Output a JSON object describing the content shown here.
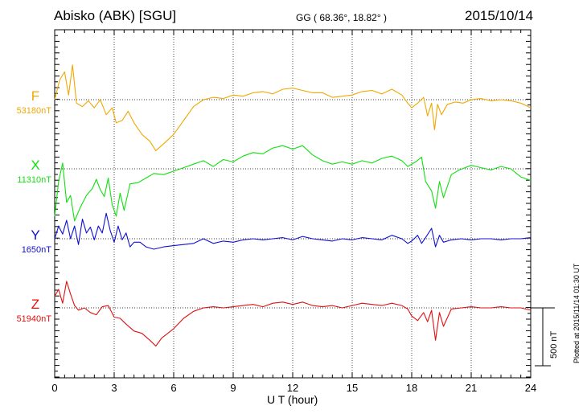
{
  "header": {
    "station": "Abisko (ABK)  [SGU]",
    "coordinates": "GG ( 68.36°,  18.82° )",
    "date": "2015/10/14"
  },
  "footer": {
    "plotted": "Plotted at 2015/11/14 01:30 UT"
  },
  "colors": {
    "F": "#f0a800",
    "X": "#10e010",
    "Y": "#1010d0",
    "Z": "#e01010"
  },
  "chart_data": {
    "type": "line",
    "xlabel": "U T (hour)",
    "xlim": [
      0,
      24
    ],
    "x_ticks": [
      "0",
      "3",
      "6",
      "9",
      "12",
      "15",
      "18",
      "21",
      "24"
    ],
    "scale_bar": {
      "label": "500 nT",
      "value_nT": 500
    },
    "series": [
      {
        "name": "F",
        "baseline_label": "53180nT",
        "baseline_nT": 53180,
        "points": [
          [
            0,
            53180
          ],
          [
            0.25,
            53350
          ],
          [
            0.5,
            53420
          ],
          [
            0.7,
            53220
          ],
          [
            0.9,
            53480
          ],
          [
            1.1,
            53150
          ],
          [
            1.4,
            53120
          ],
          [
            1.7,
            53170
          ],
          [
            2.0,
            53110
          ],
          [
            2.3,
            53180
          ],
          [
            2.6,
            53050
          ],
          [
            2.9,
            53110
          ],
          [
            3.1,
            52980
          ],
          [
            3.4,
            53000
          ],
          [
            3.7,
            53080
          ],
          [
            4.0,
            52980
          ],
          [
            4.4,
            52880
          ],
          [
            4.8,
            52820
          ],
          [
            5.1,
            52740
          ],
          [
            5.5,
            52800
          ],
          [
            6.0,
            52880
          ],
          [
            6.5,
            53000
          ],
          [
            7.0,
            53120
          ],
          [
            7.5,
            53180
          ],
          [
            8.0,
            53200
          ],
          [
            8.5,
            53190
          ],
          [
            9.0,
            53220
          ],
          [
            9.5,
            53210
          ],
          [
            10.0,
            53240
          ],
          [
            10.5,
            53250
          ],
          [
            11.0,
            53230
          ],
          [
            11.5,
            53270
          ],
          [
            12.0,
            53280
          ],
          [
            12.5,
            53260
          ],
          [
            13.0,
            53240
          ],
          [
            13.5,
            53240
          ],
          [
            14.0,
            53200
          ],
          [
            14.5,
            53210
          ],
          [
            15.0,
            53220
          ],
          [
            15.5,
            53250
          ],
          [
            16.0,
            53260
          ],
          [
            16.5,
            53230
          ],
          [
            17.0,
            53270
          ],
          [
            17.5,
            53220
          ],
          [
            17.8,
            53150
          ],
          [
            18.0,
            53110
          ],
          [
            18.3,
            53150
          ],
          [
            18.6,
            53200
          ],
          [
            18.8,
            53040
          ],
          [
            19.0,
            53150
          ],
          [
            19.15,
            52920
          ],
          [
            19.3,
            53140
          ],
          [
            19.5,
            53050
          ],
          [
            19.8,
            53140
          ],
          [
            20.2,
            53160
          ],
          [
            20.6,
            53150
          ],
          [
            21.0,
            53180
          ],
          [
            21.5,
            53190
          ],
          [
            22.0,
            53170
          ],
          [
            22.5,
            53180
          ],
          [
            23.0,
            53170
          ],
          [
            23.5,
            53150
          ],
          [
            24.0,
            53110
          ]
        ]
      },
      {
        "name": "X",
        "baseline_label": "11310nT",
        "baseline_nT": 11310,
        "points": [
          [
            0,
            10900
          ],
          [
            0.2,
            11200
          ],
          [
            0.4,
            11360
          ],
          [
            0.6,
            11020
          ],
          [
            0.8,
            11080
          ],
          [
            1.0,
            10860
          ],
          [
            1.3,
            10980
          ],
          [
            1.6,
            11080
          ],
          [
            1.9,
            11140
          ],
          [
            2.1,
            11220
          ],
          [
            2.3,
            11130
          ],
          [
            2.5,
            11070
          ],
          [
            2.7,
            11230
          ],
          [
            2.9,
            11000
          ],
          [
            3.1,
            10900
          ],
          [
            3.3,
            11100
          ],
          [
            3.5,
            10950
          ],
          [
            3.8,
            11180
          ],
          [
            4.2,
            11190
          ],
          [
            4.6,
            11230
          ],
          [
            5.0,
            11270
          ],
          [
            5.5,
            11260
          ],
          [
            6.0,
            11290
          ],
          [
            6.5,
            11320
          ],
          [
            7.0,
            11350
          ],
          [
            7.5,
            11380
          ],
          [
            8.0,
            11330
          ],
          [
            8.5,
            11390
          ],
          [
            9.0,
            11370
          ],
          [
            9.5,
            11420
          ],
          [
            10.0,
            11450
          ],
          [
            10.5,
            11440
          ],
          [
            11.0,
            11490
          ],
          [
            11.5,
            11510
          ],
          [
            12.0,
            11480
          ],
          [
            12.5,
            11510
          ],
          [
            13.0,
            11430
          ],
          [
            13.5,
            11380
          ],
          [
            14.0,
            11350
          ],
          [
            14.5,
            11370
          ],
          [
            15.0,
            11350
          ],
          [
            15.5,
            11380
          ],
          [
            16.0,
            11360
          ],
          [
            16.5,
            11400
          ],
          [
            17.0,
            11420
          ],
          [
            17.5,
            11380
          ],
          [
            17.8,
            11330
          ],
          [
            18.2,
            11370
          ],
          [
            18.5,
            11410
          ],
          [
            18.7,
            11200
          ],
          [
            19.0,
            11120
          ],
          [
            19.2,
            10970
          ],
          [
            19.4,
            11200
          ],
          [
            19.6,
            11060
          ],
          [
            20.0,
            11260
          ],
          [
            20.4,
            11300
          ],
          [
            21.0,
            11340
          ],
          [
            21.5,
            11320
          ],
          [
            22.0,
            11300
          ],
          [
            22.5,
            11330
          ],
          [
            23.0,
            11310
          ],
          [
            23.5,
            11240
          ],
          [
            24.0,
            11210
          ]
        ]
      },
      {
        "name": "Y",
        "baseline_label": "1650nT",
        "baseline_nT": 1650,
        "points": [
          [
            0,
            1650
          ],
          [
            0.2,
            1760
          ],
          [
            0.4,
            1690
          ],
          [
            0.6,
            1810
          ],
          [
            0.8,
            1650
          ],
          [
            1.0,
            1760
          ],
          [
            1.2,
            1600
          ],
          [
            1.4,
            1820
          ],
          [
            1.6,
            1700
          ],
          [
            1.8,
            1750
          ],
          [
            2.0,
            1640
          ],
          [
            2.2,
            1760
          ],
          [
            2.4,
            1700
          ],
          [
            2.6,
            1870
          ],
          [
            2.8,
            1720
          ],
          [
            3.0,
            1620
          ],
          [
            3.2,
            1760
          ],
          [
            3.4,
            1640
          ],
          [
            3.6,
            1700
          ],
          [
            3.8,
            1580
          ],
          [
            4.0,
            1620
          ],
          [
            4.3,
            1620
          ],
          [
            4.6,
            1580
          ],
          [
            5.0,
            1560
          ],
          [
            5.5,
            1580
          ],
          [
            6.0,
            1590
          ],
          [
            6.5,
            1600
          ],
          [
            7.0,
            1610
          ],
          [
            7.5,
            1650
          ],
          [
            8.0,
            1610
          ],
          [
            8.5,
            1630
          ],
          [
            9.0,
            1620
          ],
          [
            9.5,
            1640
          ],
          [
            10.0,
            1650
          ],
          [
            10.5,
            1640
          ],
          [
            11.0,
            1650
          ],
          [
            11.5,
            1660
          ],
          [
            12.0,
            1640
          ],
          [
            12.5,
            1670
          ],
          [
            13.0,
            1650
          ],
          [
            13.5,
            1640
          ],
          [
            14.0,
            1630
          ],
          [
            14.5,
            1650
          ],
          [
            15.0,
            1640
          ],
          [
            15.5,
            1660
          ],
          [
            16.0,
            1650
          ],
          [
            16.5,
            1640
          ],
          [
            17.0,
            1680
          ],
          [
            17.5,
            1650
          ],
          [
            17.8,
            1610
          ],
          [
            18.0,
            1630
          ],
          [
            18.3,
            1680
          ],
          [
            18.5,
            1610
          ],
          [
            18.7,
            1660
          ],
          [
            19.0,
            1740
          ],
          [
            19.2,
            1580
          ],
          [
            19.4,
            1680
          ],
          [
            19.6,
            1620
          ],
          [
            20.0,
            1640
          ],
          [
            20.5,
            1650
          ],
          [
            21.0,
            1640
          ],
          [
            21.5,
            1650
          ],
          [
            22.0,
            1650
          ],
          [
            22.5,
            1640
          ],
          [
            23.0,
            1650
          ],
          [
            23.5,
            1650
          ],
          [
            24.0,
            1660
          ]
        ]
      },
      {
        "name": "Z",
        "baseline_label": "51940nT",
        "baseline_nT": 51940,
        "points": [
          [
            0,
            52040
          ],
          [
            0.2,
            52100
          ],
          [
            0.4,
            51980
          ],
          [
            0.6,
            52170
          ],
          [
            0.8,
            52060
          ],
          [
            1.0,
            51960
          ],
          [
            1.2,
            51920
          ],
          [
            1.5,
            51940
          ],
          [
            1.8,
            51900
          ],
          [
            2.1,
            51880
          ],
          [
            2.4,
            51950
          ],
          [
            2.7,
            51960
          ],
          [
            3.0,
            51860
          ],
          [
            3.3,
            51850
          ],
          [
            3.6,
            51800
          ],
          [
            4.0,
            51740
          ],
          [
            4.4,
            51720
          ],
          [
            4.8,
            51660
          ],
          [
            5.1,
            51610
          ],
          [
            5.4,
            51680
          ],
          [
            6.0,
            51760
          ],
          [
            6.5,
            51850
          ],
          [
            7.0,
            51910
          ],
          [
            7.5,
            51940
          ],
          [
            8.0,
            51950
          ],
          [
            8.5,
            51940
          ],
          [
            9.0,
            51950
          ],
          [
            9.5,
            51960
          ],
          [
            10.0,
            51970
          ],
          [
            10.5,
            51950
          ],
          [
            11.0,
            51980
          ],
          [
            11.5,
            51990
          ],
          [
            12.0,
            51970
          ],
          [
            12.5,
            51990
          ],
          [
            13.0,
            51960
          ],
          [
            13.5,
            51950
          ],
          [
            14.0,
            51960
          ],
          [
            14.5,
            51940
          ],
          [
            15.0,
            51960
          ],
          [
            15.5,
            51980
          ],
          [
            16.0,
            51970
          ],
          [
            16.5,
            51960
          ],
          [
            17.0,
            51980
          ],
          [
            17.5,
            51960
          ],
          [
            17.8,
            51930
          ],
          [
            18.0,
            51870
          ],
          [
            18.3,
            51830
          ],
          [
            18.6,
            51900
          ],
          [
            18.8,
            51820
          ],
          [
            19.0,
            51920
          ],
          [
            19.2,
            51660
          ],
          [
            19.4,
            51900
          ],
          [
            19.6,
            51780
          ],
          [
            20.0,
            51930
          ],
          [
            20.5,
            51940
          ],
          [
            21.0,
            51950
          ],
          [
            21.5,
            51940
          ],
          [
            22.0,
            51940
          ],
          [
            22.5,
            51950
          ],
          [
            23.0,
            51940
          ],
          [
            23.5,
            51940
          ],
          [
            24.0,
            51920
          ]
        ]
      }
    ]
  }
}
